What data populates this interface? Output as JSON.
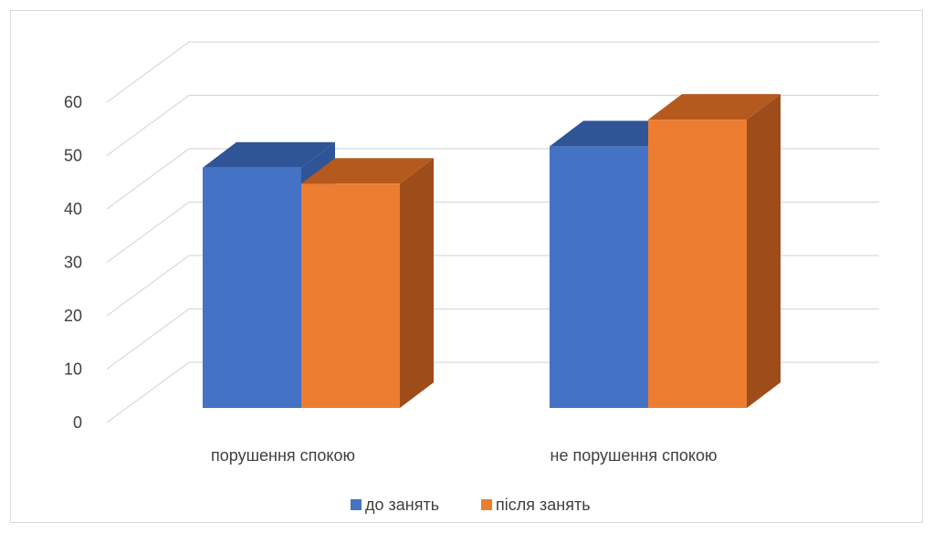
{
  "chart_data": {
    "type": "bar",
    "style": "3d-clustered-column",
    "categories": [
      "порушення спокою",
      "не порушення спокою"
    ],
    "series": [
      {
        "name": "до занять",
        "values": [
          45,
          49
        ],
        "color": "#4472C4",
        "top_color": "#2F5597",
        "side_color": "#2F5597"
      },
      {
        "name": "після занять",
        "values": [
          42,
          54
        ],
        "color": "#ED7D31",
        "top_color": "#B55A1F",
        "side_color": "#9E4C1A"
      }
    ],
    "y_ticks": [
      "0",
      "10",
      "20",
      "30",
      "40",
      "50",
      "60"
    ],
    "ylim": [
      0,
      60
    ],
    "grid": true,
    "legend_position": "bottom",
    "title": "",
    "xlabel": "",
    "ylabel": ""
  }
}
